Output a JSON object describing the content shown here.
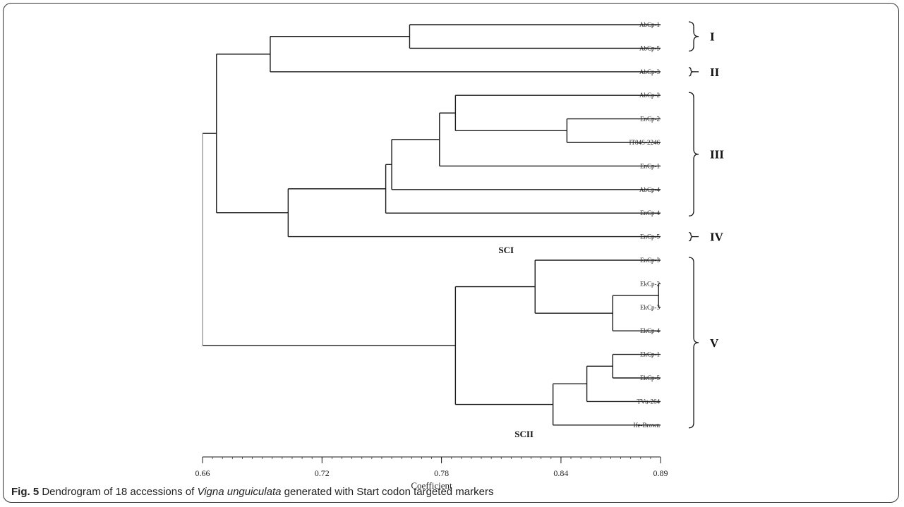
{
  "figure": {
    "caption_label": "Fig. 5",
    "caption_text_before": " Dendrogram of 18 accessions of ",
    "caption_species": "Vigna unguiculata",
    "caption_text_after": " generated with Start codon targeted markers"
  },
  "chart_data": {
    "type": "dendrogram",
    "xlabel": "Coefficient",
    "xlim": [
      0.66,
      0.89
    ],
    "xticks": [
      "0.66",
      "0.72",
      "0.78",
      "0.84",
      "0.89"
    ],
    "leaves": [
      "AbCp-1",
      "AbCp-5",
      "AbCp-3",
      "AbCp-2",
      "EnCp-2",
      "IT84S-2246",
      "EnCp-1",
      "AbCp-4",
      "EnCp-4",
      "EnCp-5",
      "EnCp-3",
      "EkCp-2",
      "EkCp-3",
      "EkCp-4",
      "EkCp-1",
      "EkCp-5",
      "TVu-264",
      "Ife-Brown"
    ],
    "merges": [
      {
        "id": "m1",
        "children": [
          "AbCp-1",
          "AbCp-5"
        ],
        "height": 0.764
      },
      {
        "id": "m2",
        "children": [
          "m1",
          "AbCp-3"
        ],
        "height": 0.694
      },
      {
        "id": "m3",
        "children": [
          "EnCp-2",
          "IT84S-2246"
        ],
        "height": 0.843
      },
      {
        "id": "m4",
        "children": [
          "AbCp-2",
          "m3"
        ],
        "height": 0.787
      },
      {
        "id": "m5",
        "children": [
          "m4",
          "EnCp-1"
        ],
        "height": 0.779
      },
      {
        "id": "m6",
        "children": [
          "m5",
          "AbCp-4"
        ],
        "height": 0.755
      },
      {
        "id": "m7",
        "children": [
          "m6",
          "EnCp-4"
        ],
        "height": 0.752
      },
      {
        "id": "m8",
        "children": [
          "m7",
          "EnCp-5"
        ],
        "height": 0.703
      },
      {
        "id": "m9",
        "children": [
          "m2",
          "m8"
        ],
        "height": 0.667
      },
      {
        "id": "m10",
        "children": [
          "EkCp-2",
          "EkCp-3"
        ],
        "height": 0.889
      },
      {
        "id": "m11",
        "children": [
          "m10",
          "EkCp-4"
        ],
        "height": 0.866
      },
      {
        "id": "m12",
        "children": [
          "EnCp-3",
          "m11"
        ],
        "height": 0.827
      },
      {
        "id": "m13",
        "children": [
          "EkCp-1",
          "EkCp-5"
        ],
        "height": 0.866
      },
      {
        "id": "m14",
        "children": [
          "m13",
          "TVu-264"
        ],
        "height": 0.853
      },
      {
        "id": "m15",
        "children": [
          "m14",
          "Ife-Brown"
        ],
        "height": 0.836
      },
      {
        "id": "m16",
        "children": [
          "m12",
          "m15"
        ],
        "height": 0.787
      },
      {
        "id": "m17",
        "children": [
          "m9",
          "m16"
        ],
        "height": 0.66
      }
    ],
    "clusters": [
      {
        "label": "I",
        "members": [
          "AbCp-1",
          "AbCp-5"
        ]
      },
      {
        "label": "II",
        "members": [
          "AbCp-3"
        ]
      },
      {
        "label": "III",
        "members": [
          "AbCp-2",
          "EnCp-2",
          "IT84S-2246",
          "EnCp-1",
          "AbCp-4",
          "EnCp-4"
        ]
      },
      {
        "label": "IV",
        "members": [
          "EnCp-5"
        ]
      },
      {
        "label": "V",
        "members": [
          "EnCp-3",
          "EkCp-2",
          "EkCp-3",
          "EkCp-4",
          "EkCp-1",
          "EkCp-5",
          "TVu-264",
          "Ife-Brown"
        ]
      }
    ],
    "subclusters": [
      {
        "label": "SCI",
        "node": "m12"
      },
      {
        "label": "SCII",
        "node": "m15"
      }
    ]
  }
}
